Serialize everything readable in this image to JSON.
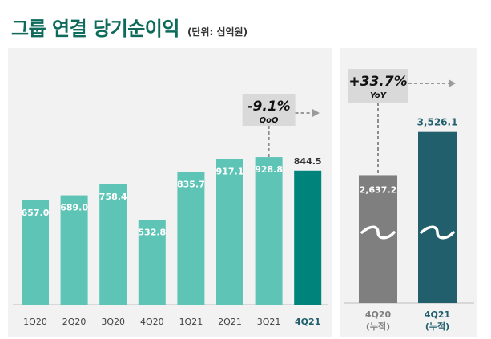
{
  "header": {
    "title": "그룹 연결 당기순이익",
    "unit": "(단위: 십억원)"
  },
  "colors": {
    "title": "#0e6b5c",
    "bar_light": "#5ec4b6",
    "bar_highlight": "#00837a",
    "bar_gray": "#7f7f7f",
    "bar_dark": "#225f6c",
    "callout_bg": "#d9d9d9",
    "panel_bg": "#f2f2f2"
  },
  "chart_data": [
    {
      "type": "bar",
      "title": "",
      "categories": [
        "1Q20",
        "2Q20",
        "3Q20",
        "4Q20",
        "1Q21",
        "2Q21",
        "3Q21",
        "4Q21"
      ],
      "values": [
        657.0,
        689.0,
        758.4,
        532.8,
        835.7,
        917.1,
        928.8,
        844.5
      ],
      "value_labels": [
        "657.0",
        "689.0",
        "758.4",
        "532.8",
        "835.7",
        "917.1",
        "928.8",
        "844.5"
      ],
      "highlight": "4Q21",
      "callout": {
        "label": "-9.1%",
        "sublabel": "QoQ"
      },
      "ylim": [
        0,
        1000
      ]
    },
    {
      "type": "bar",
      "title": "",
      "categories": [
        "4Q20\n(누적)",
        "4Q21\n(누적)"
      ],
      "category_lines": [
        [
          "4Q20",
          "(누적)"
        ],
        [
          "4Q21",
          "(누적)"
        ]
      ],
      "values": [
        2637.2,
        3526.1
      ],
      "value_labels": [
        "2,637.2",
        "3,526.1"
      ],
      "axis_break": true,
      "callout": {
        "label": "+33.7%",
        "sublabel": "YoY"
      }
    }
  ]
}
